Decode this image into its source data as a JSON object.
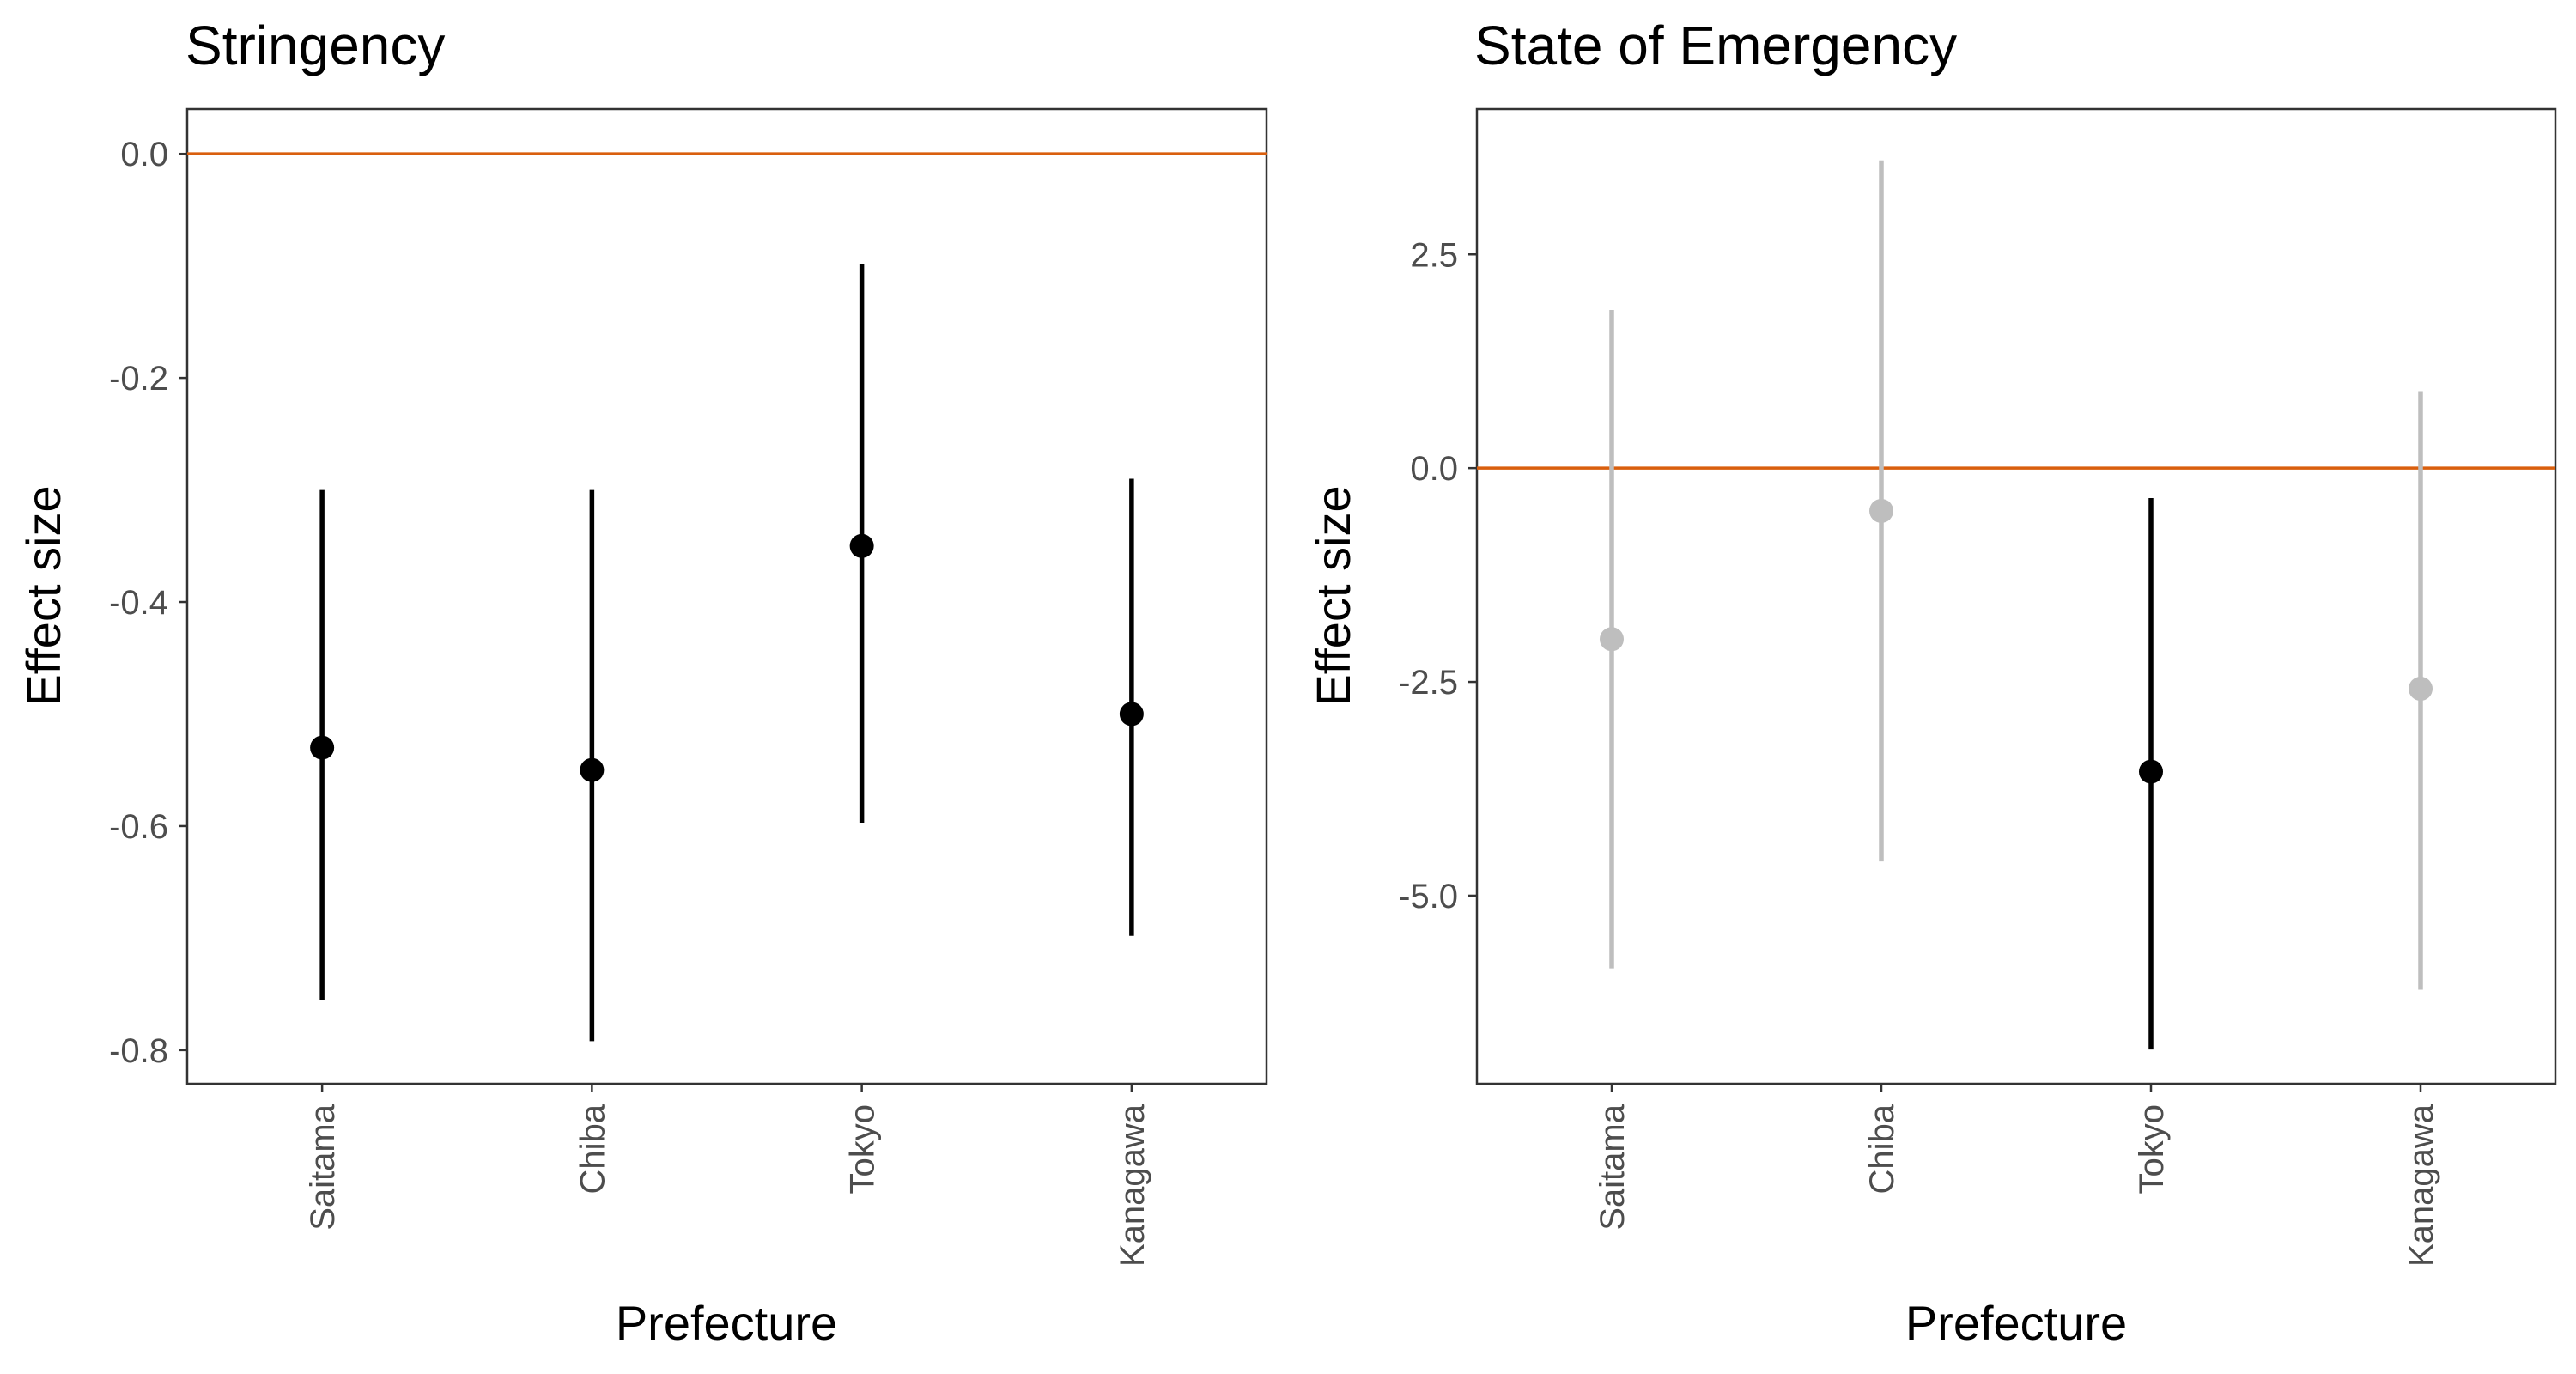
{
  "chart_data": [
    {
      "type": "errorbar",
      "title": "Stringency",
      "xlabel": "Prefecture",
      "ylabel": "Effect size",
      "categories": [
        "Saitama",
        "Chiba",
        "Tokyo",
        "Kanagawa"
      ],
      "values": [
        -0.53,
        -0.55,
        -0.35,
        -0.5
      ],
      "lower": [
        -0.755,
        -0.792,
        -0.597,
        -0.698
      ],
      "upper": [
        -0.3,
        -0.3,
        -0.098,
        -0.29
      ],
      "significant": [
        true,
        true,
        true,
        true
      ],
      "ylim": [
        -0.83,
        0.04
      ],
      "yticks": [
        0,
        -0.2,
        -0.4,
        -0.6,
        -0.8
      ],
      "ytick_labels": [
        "0.0",
        "-0.2",
        "-0.4",
        "-0.6",
        "-0.8"
      ],
      "reference_line": 0,
      "grid": false
    },
    {
      "type": "errorbar",
      "title": "State of Emergency",
      "xlabel": "Prefecture",
      "ylabel": "Effect size",
      "categories": [
        "Saitama",
        "Chiba",
        "Tokyo",
        "Kanagawa"
      ],
      "values": [
        -2.0,
        -0.5,
        -3.55,
        -2.58
      ],
      "lower": [
        -5.85,
        -4.6,
        -6.8,
        -6.1
      ],
      "upper": [
        1.85,
        3.6,
        -0.35,
        0.9
      ],
      "significant": [
        false,
        false,
        true,
        false
      ],
      "ylim": [
        -7.2,
        4.2
      ],
      "yticks": [
        2.5,
        0,
        -2.5,
        -5
      ],
      "ytick_labels": [
        "2.5",
        "0.0",
        "-2.5",
        "-5.0"
      ],
      "reference_line": 0,
      "grid": false
    }
  ],
  "colors": {
    "significant": "#000000",
    "not_significant": "#bebebe",
    "reference_line": "#d95f0e",
    "panel_border": "#333333",
    "tick_label": "#4d4d4d"
  }
}
